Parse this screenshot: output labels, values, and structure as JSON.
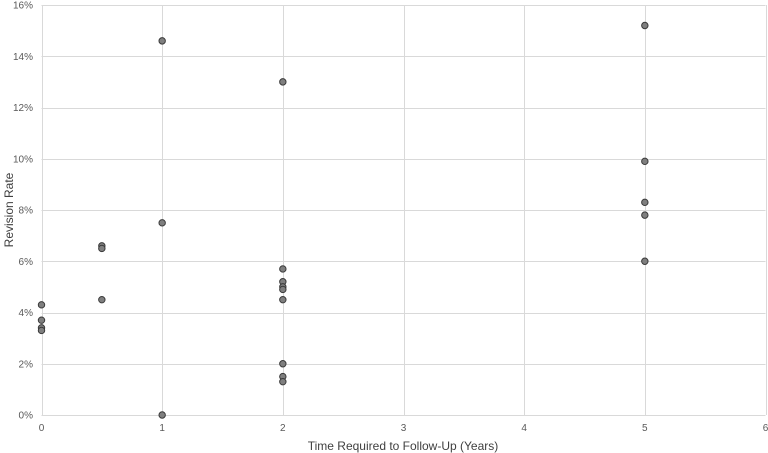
{
  "chart_data": {
    "type": "scatter",
    "title": "",
    "xlabel": "Time Required to Follow-Up (Years)",
    "ylabel": "Revision Rate",
    "xlim": [
      0,
      6
    ],
    "ylim": [
      0,
      0.16
    ],
    "x_ticks": [
      0,
      1,
      2,
      3,
      4,
      5,
      6
    ],
    "y_ticks": [
      0,
      0.02,
      0.04,
      0.06,
      0.08,
      0.1,
      0.12,
      0.14,
      0.16
    ],
    "y_tick_labels": [
      "0%",
      "2%",
      "4%",
      "6%",
      "8%",
      "10%",
      "12%",
      "14%",
      "16%"
    ],
    "grid": "vertical and horizontal major gridlines",
    "legend": "none",
    "marker_color": "#7f7f7f",
    "marker_edge_color": "#3a3a3a",
    "grid_color": "#d9d9d9",
    "series": [
      {
        "points": [
          {
            "x": 0,
            "y": 0.043
          },
          {
            "x": 0,
            "y": 0.037
          },
          {
            "x": 0,
            "y": 0.034
          },
          {
            "x": 0,
            "y": 0.033
          },
          {
            "x": 0.5,
            "y": 0.066
          },
          {
            "x": 0.5,
            "y": 0.065
          },
          {
            "x": 0.5,
            "y": 0.045
          },
          {
            "x": 1,
            "y": 0.146
          },
          {
            "x": 1,
            "y": 0.075
          },
          {
            "x": 1,
            "y": 0.0
          },
          {
            "x": 2,
            "y": 0.13
          },
          {
            "x": 2,
            "y": 0.057
          },
          {
            "x": 2,
            "y": 0.052
          },
          {
            "x": 2,
            "y": 0.05
          },
          {
            "x": 2,
            "y": 0.049
          },
          {
            "x": 2,
            "y": 0.045
          },
          {
            "x": 2,
            "y": 0.02
          },
          {
            "x": 2,
            "y": 0.015
          },
          {
            "x": 2,
            "y": 0.013
          },
          {
            "x": 5,
            "y": 0.152
          },
          {
            "x": 5,
            "y": 0.099
          },
          {
            "x": 5,
            "y": 0.083
          },
          {
            "x": 5,
            "y": 0.078
          },
          {
            "x": 5,
            "y": 0.06
          }
        ]
      }
    ]
  }
}
